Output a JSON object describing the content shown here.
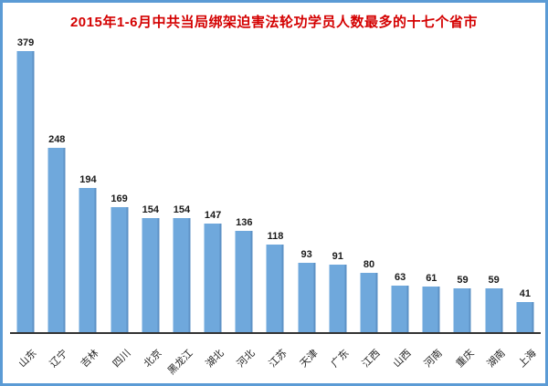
{
  "frame": {
    "border_color": "#5b9bd5",
    "background": "#ffffff"
  },
  "chart_data": {
    "type": "bar",
    "title": "2015年1-6月中共当局绑架迫害法轮功学员人数最多的十七个省市",
    "categories": [
      "山东",
      "辽宁",
      "吉林",
      "四川",
      "北京",
      "黑龙江",
      "湖北",
      "河北",
      "江苏",
      "天津",
      "广东",
      "江西",
      "山西",
      "河南",
      "重庆",
      "湖南",
      "上海"
    ],
    "values": [
      379,
      248,
      194,
      169,
      154,
      154,
      147,
      136,
      118,
      93,
      91,
      80,
      63,
      61,
      59,
      59,
      41
    ],
    "xlabel": "",
    "ylabel": "",
    "ylim": [
      0,
      379
    ],
    "grid": false,
    "legend": false,
    "value_labels_shown": true,
    "x_labels_rotation_deg": -45,
    "colors": {
      "title": "#d40000",
      "bar": "#6fa8dc",
      "value_label": "#1a1a1a",
      "x_label": "#262626",
      "axis_line": "#333333"
    }
  }
}
